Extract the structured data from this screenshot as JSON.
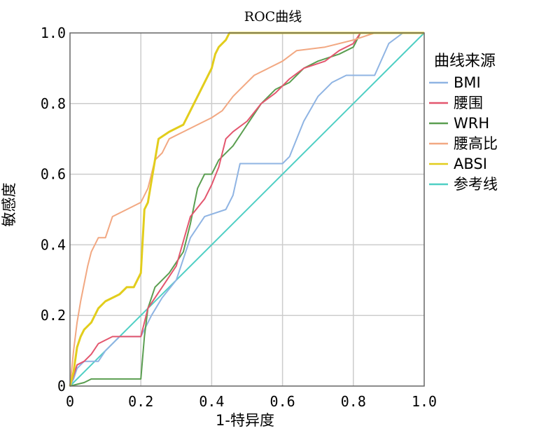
{
  "chart_data": {
    "type": "line",
    "title": "ROC曲线",
    "xlabel": "1-特异度",
    "ylabel": "敏感度",
    "xlim": [
      0,
      1
    ],
    "ylim": [
      0,
      1
    ],
    "xticks": [
      "0",
      "0.2",
      "0.4",
      "0.6",
      "0.8",
      "1.0"
    ],
    "yticks": [
      "0",
      "0.2",
      "0.4",
      "0.6",
      "0.8",
      "1.0"
    ],
    "grid": true,
    "legend_title": "曲线来源",
    "legend_position": "right",
    "series": [
      {
        "name": "BMI",
        "color": "#8fb4e3",
        "points": [
          [
            0,
            0
          ],
          [
            0.01,
            0.02
          ],
          [
            0.02,
            0.05
          ],
          [
            0.04,
            0.07
          ],
          [
            0.08,
            0.07
          ],
          [
            0.1,
            0.1
          ],
          [
            0.12,
            0.12
          ],
          [
            0.14,
            0.14
          ],
          [
            0.2,
            0.14
          ],
          [
            0.21,
            0.16
          ],
          [
            0.23,
            0.2
          ],
          [
            0.26,
            0.25
          ],
          [
            0.3,
            0.3
          ],
          [
            0.32,
            0.36
          ],
          [
            0.34,
            0.42
          ],
          [
            0.38,
            0.48
          ],
          [
            0.44,
            0.5
          ],
          [
            0.46,
            0.54
          ],
          [
            0.48,
            0.63
          ],
          [
            0.6,
            0.63
          ],
          [
            0.62,
            0.65
          ],
          [
            0.66,
            0.75
          ],
          [
            0.7,
            0.82
          ],
          [
            0.74,
            0.86
          ],
          [
            0.78,
            0.88
          ],
          [
            0.86,
            0.88
          ],
          [
            0.9,
            0.97
          ],
          [
            0.94,
            1.0
          ],
          [
            1.0,
            1.0
          ]
        ]
      },
      {
        "name": "腰围",
        "color": "#e3566e",
        "points": [
          [
            0,
            0
          ],
          [
            0.01,
            0.03
          ],
          [
            0.02,
            0.06
          ],
          [
            0.04,
            0.07
          ],
          [
            0.06,
            0.09
          ],
          [
            0.08,
            0.12
          ],
          [
            0.12,
            0.14
          ],
          [
            0.2,
            0.14
          ],
          [
            0.22,
            0.22
          ],
          [
            0.26,
            0.28
          ],
          [
            0.3,
            0.34
          ],
          [
            0.34,
            0.48
          ],
          [
            0.38,
            0.53
          ],
          [
            0.4,
            0.57
          ],
          [
            0.42,
            0.62
          ],
          [
            0.44,
            0.7
          ],
          [
            0.46,
            0.72
          ],
          [
            0.5,
            0.75
          ],
          [
            0.54,
            0.8
          ],
          [
            0.58,
            0.83
          ],
          [
            0.62,
            0.87
          ],
          [
            0.66,
            0.9
          ],
          [
            0.72,
            0.92
          ],
          [
            0.76,
            0.95
          ],
          [
            0.8,
            0.97
          ],
          [
            0.82,
            1.0
          ],
          [
            1.0,
            1.0
          ]
        ]
      },
      {
        "name": "WRH",
        "color": "#5a9e50",
        "points": [
          [
            0,
            0
          ],
          [
            0.04,
            0.01
          ],
          [
            0.06,
            0.02
          ],
          [
            0.2,
            0.02
          ],
          [
            0.21,
            0.14
          ],
          [
            0.22,
            0.22
          ],
          [
            0.24,
            0.28
          ],
          [
            0.28,
            0.32
          ],
          [
            0.32,
            0.38
          ],
          [
            0.34,
            0.46
          ],
          [
            0.36,
            0.56
          ],
          [
            0.38,
            0.6
          ],
          [
            0.4,
            0.6
          ],
          [
            0.42,
            0.64
          ],
          [
            0.46,
            0.68
          ],
          [
            0.5,
            0.74
          ],
          [
            0.54,
            0.8
          ],
          [
            0.58,
            0.84
          ],
          [
            0.62,
            0.86
          ],
          [
            0.66,
            0.9
          ],
          [
            0.7,
            0.92
          ],
          [
            0.76,
            0.94
          ],
          [
            0.8,
            0.96
          ],
          [
            0.82,
            1.0
          ],
          [
            1.0,
            1.0
          ]
        ]
      },
      {
        "name": "腰高比",
        "color": "#f2a882",
        "points": [
          [
            0,
            0
          ],
          [
            0.01,
            0.1
          ],
          [
            0.02,
            0.18
          ],
          [
            0.03,
            0.24
          ],
          [
            0.05,
            0.34
          ],
          [
            0.06,
            0.38
          ],
          [
            0.08,
            0.42
          ],
          [
            0.1,
            0.42
          ],
          [
            0.12,
            0.48
          ],
          [
            0.16,
            0.5
          ],
          [
            0.2,
            0.52
          ],
          [
            0.22,
            0.56
          ],
          [
            0.24,
            0.64
          ],
          [
            0.26,
            0.66
          ],
          [
            0.28,
            0.7
          ],
          [
            0.32,
            0.72
          ],
          [
            0.36,
            0.74
          ],
          [
            0.4,
            0.76
          ],
          [
            0.43,
            0.78
          ],
          [
            0.46,
            0.82
          ],
          [
            0.48,
            0.84
          ],
          [
            0.52,
            0.88
          ],
          [
            0.56,
            0.9
          ],
          [
            0.6,
            0.92
          ],
          [
            0.64,
            0.95
          ],
          [
            0.72,
            0.96
          ],
          [
            0.8,
            0.98
          ],
          [
            0.86,
            1.0
          ],
          [
            1.0,
            1.0
          ]
        ]
      },
      {
        "name": "ABSI",
        "color": "#e2cd1c",
        "points": [
          [
            0,
            0
          ],
          [
            0.01,
            0.04
          ],
          [
            0.02,
            0.11
          ],
          [
            0.03,
            0.14
          ],
          [
            0.04,
            0.16
          ],
          [
            0.06,
            0.18
          ],
          [
            0.08,
            0.22
          ],
          [
            0.1,
            0.24
          ],
          [
            0.14,
            0.26
          ],
          [
            0.16,
            0.28
          ],
          [
            0.18,
            0.28
          ],
          [
            0.2,
            0.32
          ],
          [
            0.21,
            0.5
          ],
          [
            0.22,
            0.52
          ],
          [
            0.24,
            0.64
          ],
          [
            0.25,
            0.7
          ],
          [
            0.28,
            0.72
          ],
          [
            0.32,
            0.74
          ],
          [
            0.34,
            0.78
          ],
          [
            0.36,
            0.82
          ],
          [
            0.38,
            0.86
          ],
          [
            0.4,
            0.9
          ],
          [
            0.41,
            0.94
          ],
          [
            0.42,
            0.96
          ],
          [
            0.44,
            0.98
          ],
          [
            0.45,
            1.0
          ],
          [
            1.0,
            1.0
          ]
        ]
      },
      {
        "name": "参考线",
        "color": "#4fcfc4",
        "points": [
          [
            0,
            0
          ],
          [
            1,
            1
          ]
        ]
      }
    ]
  }
}
